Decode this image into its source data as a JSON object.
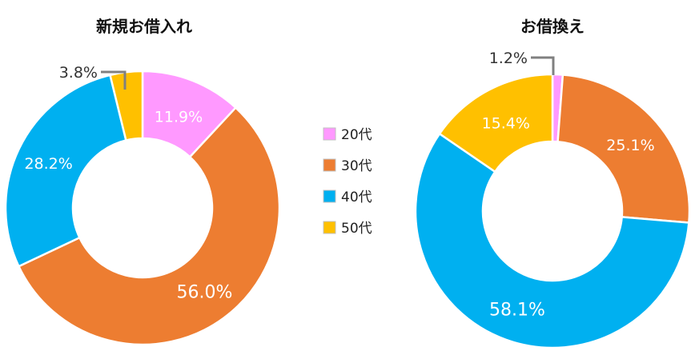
{
  "chart_data": [
    {
      "type": "pie",
      "title": "新規お借入れ",
      "categories": [
        "20代",
        "30代",
        "40代",
        "50代"
      ],
      "values": [
        11.9,
        56.0,
        28.2,
        3.8
      ],
      "labels": [
        "11.9%",
        "56.0%",
        "28.2%",
        "3.8%"
      ],
      "donut": true
    },
    {
      "type": "pie",
      "title": "お借換え",
      "categories": [
        "20代",
        "30代",
        "40代",
        "50代"
      ],
      "values": [
        1.2,
        25.1,
        58.1,
        15.4
      ],
      "labels": [
        "1.2%",
        "25.1%",
        "58.1%",
        "15.4%"
      ],
      "donut": true
    }
  ],
  "legend": {
    "placement": "center",
    "items": [
      {
        "label": "20代",
        "color": "#ff99ff"
      },
      {
        "label": "30代",
        "color": "#ed7d31"
      },
      {
        "label": "40代",
        "color": "#00b0f0"
      },
      {
        "label": "50代",
        "color": "#ffc000"
      }
    ]
  },
  "colors": [
    "#ff99ff",
    "#ed7d31",
    "#00b0f0",
    "#ffc000"
  ]
}
